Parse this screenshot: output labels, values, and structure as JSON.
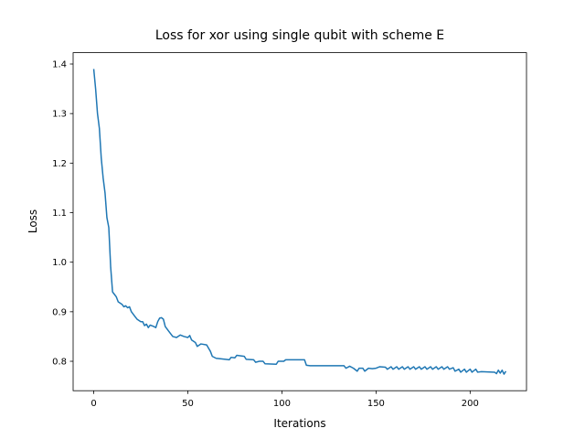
{
  "chart_data": {
    "type": "line",
    "title": "Loss for xor using single qubit with scheme E",
    "x_label": "Iterations",
    "y_label": "Loss",
    "color": "#1f77b4",
    "x": [
      0,
      1,
      2,
      3,
      4,
      5,
      6,
      7,
      8,
      9,
      10,
      11,
      12,
      13,
      15,
      16,
      17,
      18,
      19,
      20,
      22,
      23,
      25,
      26,
      27,
      28,
      29,
      30,
      32,
      33,
      34,
      35,
      36,
      37,
      38,
      40,
      42,
      44,
      46,
      48,
      50,
      51,
      52,
      54,
      55,
      57,
      60,
      62,
      63,
      65,
      70,
      72,
      73,
      75,
      76,
      80,
      81,
      85,
      86,
      88,
      90,
      91,
      97,
      98,
      101,
      102,
      112,
      113,
      115,
      133,
      134,
      136,
      138,
      140,
      141,
      143,
      144,
      146,
      148,
      150,
      152,
      155,
      156,
      158,
      159,
      161,
      162,
      164,
      165,
      167,
      168,
      170,
      171,
      173,
      174,
      176,
      177,
      179,
      180,
      182,
      183,
      185,
      186,
      188,
      189,
      191,
      192,
      194,
      195,
      197,
      198,
      200,
      201,
      203,
      204,
      206,
      213,
      214,
      215,
      216,
      217,
      218,
      219
    ],
    "values": [
      1.39,
      1.35,
      1.3,
      1.27,
      1.21,
      1.17,
      1.14,
      1.09,
      1.07,
      0.99,
      0.94,
      0.935,
      0.93,
      0.92,
      0.915,
      0.91,
      0.912,
      0.908,
      0.91,
      0.9,
      0.89,
      0.885,
      0.88,
      0.88,
      0.872,
      0.875,
      0.868,
      0.873,
      0.87,
      0.868,
      0.88,
      0.887,
      0.888,
      0.885,
      0.87,
      0.86,
      0.85,
      0.848,
      0.853,
      0.85,
      0.848,
      0.852,
      0.843,
      0.838,
      0.83,
      0.835,
      0.833,
      0.82,
      0.81,
      0.806,
      0.804,
      0.803,
      0.808,
      0.807,
      0.812,
      0.81,
      0.804,
      0.803,
      0.798,
      0.8,
      0.8,
      0.795,
      0.794,
      0.8,
      0.8,
      0.803,
      0.803,
      0.792,
      0.791,
      0.791,
      0.786,
      0.79,
      0.786,
      0.78,
      0.786,
      0.786,
      0.78,
      0.786,
      0.785,
      0.786,
      0.789,
      0.788,
      0.784,
      0.789,
      0.784,
      0.789,
      0.784,
      0.789,
      0.784,
      0.789,
      0.784,
      0.789,
      0.784,
      0.789,
      0.784,
      0.789,
      0.784,
      0.789,
      0.784,
      0.789,
      0.784,
      0.789,
      0.784,
      0.789,
      0.784,
      0.787,
      0.78,
      0.784,
      0.778,
      0.784,
      0.778,
      0.784,
      0.778,
      0.784,
      0.778,
      0.779,
      0.778,
      0.775,
      0.782,
      0.776,
      0.782,
      0.774,
      0.78
    ],
    "xlim": [
      -10.95,
      229.95
    ],
    "ylim": [
      0.7406,
      1.4229
    ],
    "xticks": [
      0,
      50,
      100,
      150,
      200
    ],
    "yticks": [
      0.8,
      0.9,
      {
        "value": 1,
        "label": "1.0"
      },
      1.1,
      1.2,
      1.3,
      1.4
    ]
  }
}
